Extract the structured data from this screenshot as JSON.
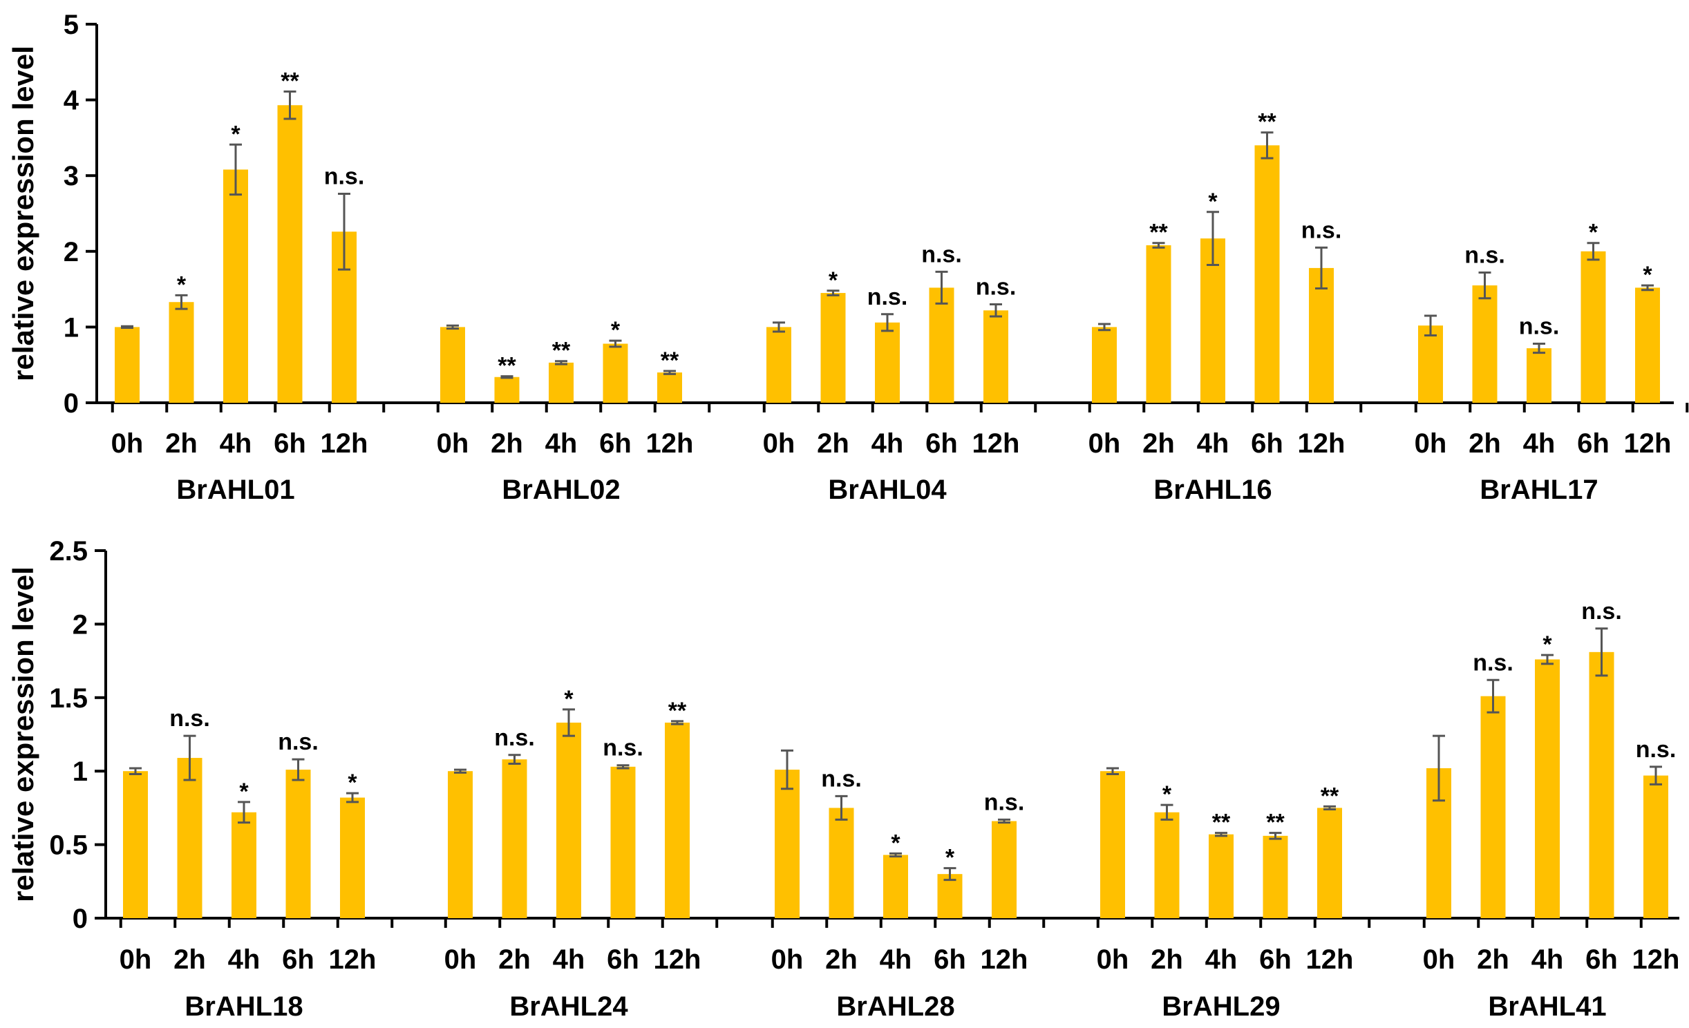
{
  "colors": {
    "bar": "#FFC000",
    "axis": "#000000",
    "error": "#555555"
  },
  "chart_data": [
    {
      "type": "bar",
      "ylabel": "relative expression level",
      "ylim": [
        0,
        5
      ],
      "yticks": [
        "0",
        "1",
        "2",
        "3",
        "4",
        "5"
      ],
      "ytick_values": [
        0,
        1,
        2,
        3,
        4,
        5
      ],
      "categories": [
        "0h",
        "2h",
        "4h",
        "6h",
        "12h"
      ],
      "groups": [
        {
          "name": "BrAHL01",
          "values": [
            1.0,
            1.33,
            3.08,
            3.93,
            2.26
          ],
          "errors": [
            0.01,
            0.09,
            0.33,
            0.18,
            0.5
          ],
          "sig": [
            "",
            "*",
            "*",
            "**",
            "n.s."
          ]
        },
        {
          "name": "BrAHL02",
          "values": [
            1.0,
            0.34,
            0.53,
            0.78,
            0.4
          ],
          "errors": [
            0.02,
            0.01,
            0.02,
            0.04,
            0.02
          ],
          "sig": [
            "",
            "**",
            "**",
            "*",
            "**"
          ]
        },
        {
          "name": "BrAHL04",
          "values": [
            1.0,
            1.45,
            1.06,
            1.52,
            1.22
          ],
          "errors": [
            0.06,
            0.03,
            0.11,
            0.21,
            0.08
          ],
          "sig": [
            "",
            "*",
            "n.s.",
            "n.s.",
            "n.s."
          ]
        },
        {
          "name": "BrAHL16",
          "values": [
            1.0,
            2.08,
            2.17,
            3.4,
            1.78
          ],
          "errors": [
            0.04,
            0.03,
            0.35,
            0.17,
            0.27
          ],
          "sig": [
            "",
            "**",
            "*",
            "**",
            "n.s."
          ]
        },
        {
          "name": "BrAHL17",
          "values": [
            1.02,
            1.55,
            0.72,
            2.0,
            1.52
          ],
          "errors": [
            0.13,
            0.17,
            0.06,
            0.11,
            0.03
          ],
          "sig": [
            "",
            "n.s.",
            "n.s.",
            "*",
            "*"
          ]
        }
      ]
    },
    {
      "type": "bar",
      "ylabel": "relative expression level",
      "ylim": [
        0,
        2.5
      ],
      "yticks": [
        "0",
        "0.5",
        "1",
        "1.5",
        "2",
        "2.5"
      ],
      "ytick_values": [
        0,
        0.5,
        1,
        1.5,
        2,
        2.5
      ],
      "categories": [
        "0h",
        "2h",
        "4h",
        "6h",
        "12h"
      ],
      "groups": [
        {
          "name": "BrAHL18",
          "values": [
            1.0,
            1.09,
            0.72,
            1.01,
            0.82
          ],
          "errors": [
            0.02,
            0.15,
            0.07,
            0.07,
            0.03
          ],
          "sig": [
            "",
            "n.s.",
            "*",
            "n.s.",
            "*"
          ]
        },
        {
          "name": "BrAHL24",
          "values": [
            1.0,
            1.08,
            1.33,
            1.03,
            1.33
          ],
          "errors": [
            0.01,
            0.03,
            0.09,
            0.01,
            0.01
          ],
          "sig": [
            "",
            "n.s.",
            "*",
            "n.s.",
            "**"
          ]
        },
        {
          "name": "BrAHL28",
          "values": [
            1.01,
            0.75,
            0.43,
            0.3,
            0.66
          ],
          "errors": [
            0.13,
            0.08,
            0.01,
            0.04,
            0.01
          ],
          "sig": [
            "",
            "n.s.",
            "*",
            "*",
            "n.s."
          ]
        },
        {
          "name": "BrAHL29",
          "values": [
            1.0,
            0.72,
            0.57,
            0.56,
            0.75
          ],
          "errors": [
            0.02,
            0.05,
            0.01,
            0.02,
            0.01
          ],
          "sig": [
            "",
            "*",
            "**",
            "**",
            "**"
          ]
        },
        {
          "name": "BrAHL41",
          "values": [
            1.02,
            1.51,
            1.76,
            1.81,
            0.97
          ],
          "errors": [
            0.22,
            0.11,
            0.03,
            0.16,
            0.06
          ],
          "sig": [
            "",
            "n.s.",
            "*",
            "n.s.",
            "n.s."
          ]
        }
      ]
    }
  ]
}
